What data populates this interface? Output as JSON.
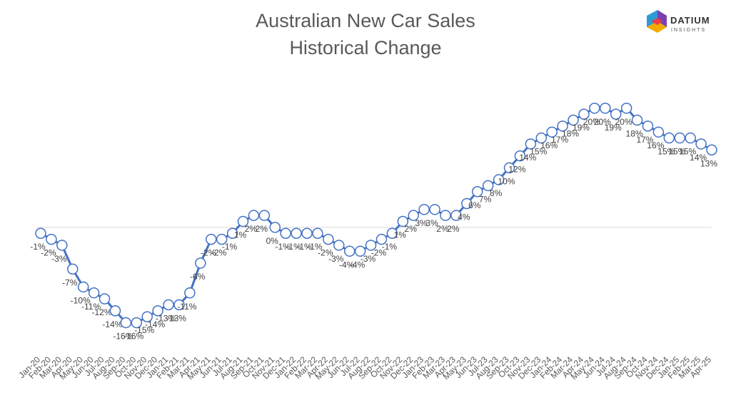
{
  "brand": {
    "name": "DATIUM",
    "tagline": "INSIGHTS"
  },
  "chart_data": {
    "type": "line",
    "title": [
      "Australian New Car Sales",
      "Historical Change"
    ],
    "categories": [
      "Jan-20",
      "Feb-20",
      "Mar-20",
      "Apr-20",
      "May-20",
      "Jun-20",
      "Jul-20",
      "Aug-20",
      "Sep-20",
      "Oct-20",
      "Nov-20",
      "Dec-20",
      "Jan-21",
      "Feb-21",
      "Mar-21",
      "Apr-21",
      "May-21",
      "Jun-21",
      "Jul-21",
      "Aug-21",
      "Sep-21",
      "Oct-21",
      "Nov-21",
      "Dec-21",
      "Jan-22",
      "Feb-22",
      "Mar-22",
      "Apr-22",
      "May-22",
      "Jun-22",
      "Jul-22",
      "Aug-22",
      "Sep-22",
      "Oct-22",
      "Nov-22",
      "Dec-22",
      "Jan-23",
      "Feb-23",
      "Mar-23",
      "Apr-23",
      "May-23",
      "Jun-23",
      "Jul-23",
      "Aug-23",
      "Sep-23",
      "Oct-23",
      "Nov-23",
      "Dec-23",
      "Jan-24",
      "Feb-24",
      "Mar-24",
      "Apr-24",
      "May-24",
      "Jun-24",
      "Jul-24",
      "Aug-24",
      "Sep-24",
      "Oct-24",
      "Nov-24",
      "Dec-24",
      "Jan-25",
      "Feb-25",
      "Mar-25",
      "Apr-25"
    ],
    "series": [
      {
        "name": "Historical Change",
        "color": "#4472c4",
        "values": [
          -1,
          -2,
          -3,
          -7,
          -10,
          -11,
          -12,
          -14,
          -16,
          -16,
          -15,
          -14,
          -13,
          -13,
          -11,
          -6,
          -2,
          -2,
          -1,
          1,
          2,
          2,
          0,
          -1,
          -1,
          -1,
          -1,
          -2,
          -3,
          -4,
          -4,
          -3,
          -2,
          -1,
          1,
          2,
          3,
          3,
          2,
          2,
          4,
          6,
          7,
          8,
          10,
          12,
          14,
          15,
          16,
          17,
          18,
          19,
          20,
          20,
          19,
          20,
          18,
          17,
          16,
          15,
          15,
          15,
          14,
          13
        ],
        "value_labels": [
          "-1%",
          "-2%",
          "-3%",
          "-7%",
          "-10%",
          "-11%",
          "-12%",
          "-14%",
          "-16%",
          "-16%",
          "-15%",
          "-14%",
          "-13%",
          "-13%",
          "-11%",
          "-6%",
          "-2%",
          "-2%",
          "-1%",
          "1%",
          "2%",
          "2%",
          "0%",
          "-1%",
          "-1%",
          "-1%",
          "-1%",
          "-2%",
          "-3%",
          "-4%",
          "-4%",
          "-3%",
          "-2%",
          "-1%",
          "1%",
          "2%",
          "3%",
          "3%",
          "2%",
          "2%",
          "4%",
          "6%",
          "7%",
          "8%",
          "10%",
          "12%",
          "14%",
          "15%",
          "16%",
          "17%",
          "18%",
          "19%",
          "20%",
          "20%",
          "19%",
          "20%",
          "18%",
          "17%",
          "16%",
          "15%",
          "15%",
          "15%",
          "14%",
          "13%"
        ]
      }
    ],
    "ylim": [
      -20,
      25
    ]
  }
}
